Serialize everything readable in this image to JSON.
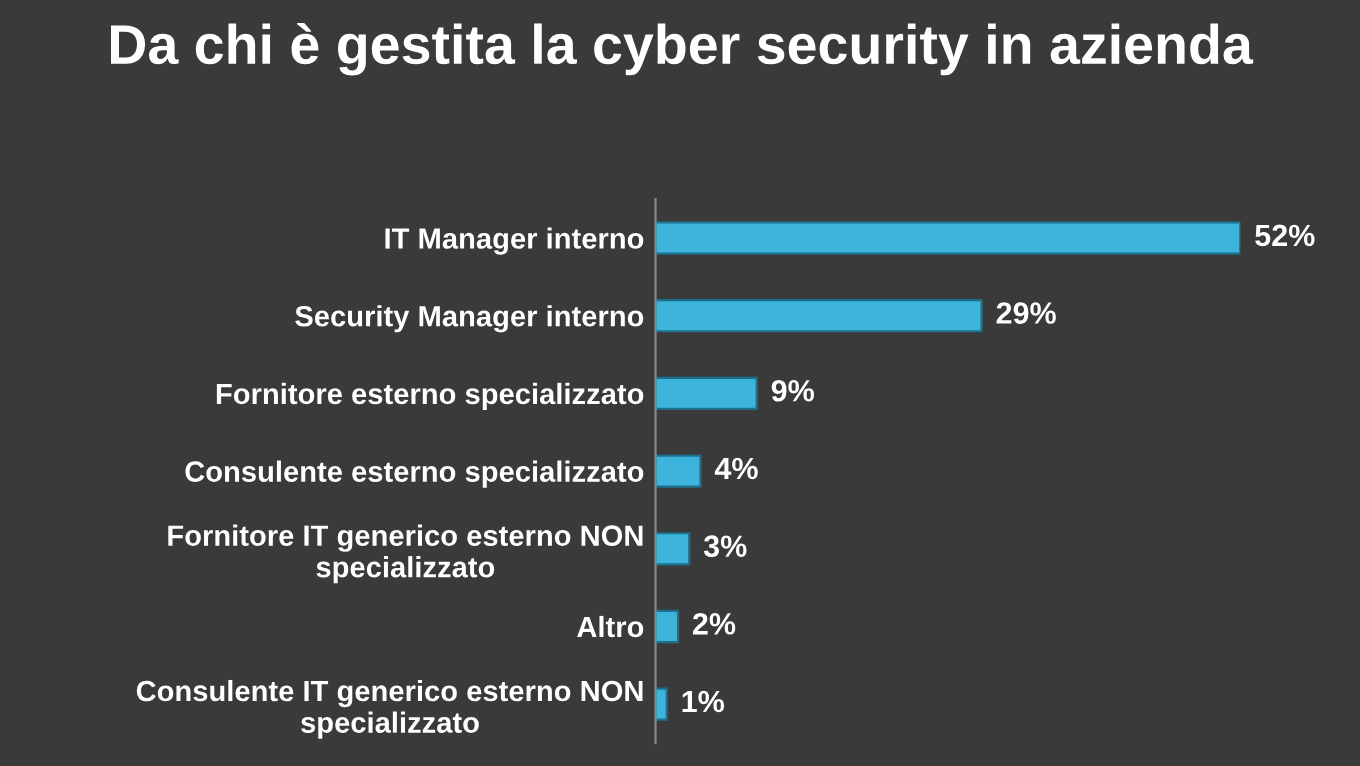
{
  "chart_data": {
    "type": "bar",
    "orientation": "horizontal",
    "title": "Da chi è gestita la cyber security in azienda",
    "categories": [
      "IT Manager interno",
      "Security Manager interno",
      "Fornitore esterno specializzato",
      "Consulente esterno specializzato",
      "Fornitore IT generico esterno NON\nspecializzato",
      "Altro",
      "Consulente IT generico esterno NON\nspecializzato"
    ],
    "values": [
      52,
      29,
      9,
      4,
      3,
      2,
      1
    ],
    "value_labels": [
      "52%",
      "29%",
      "9%",
      "4%",
      "3%",
      "2%",
      "1%"
    ],
    "color": "#3db4dc",
    "grid": false,
    "legend": false
  }
}
